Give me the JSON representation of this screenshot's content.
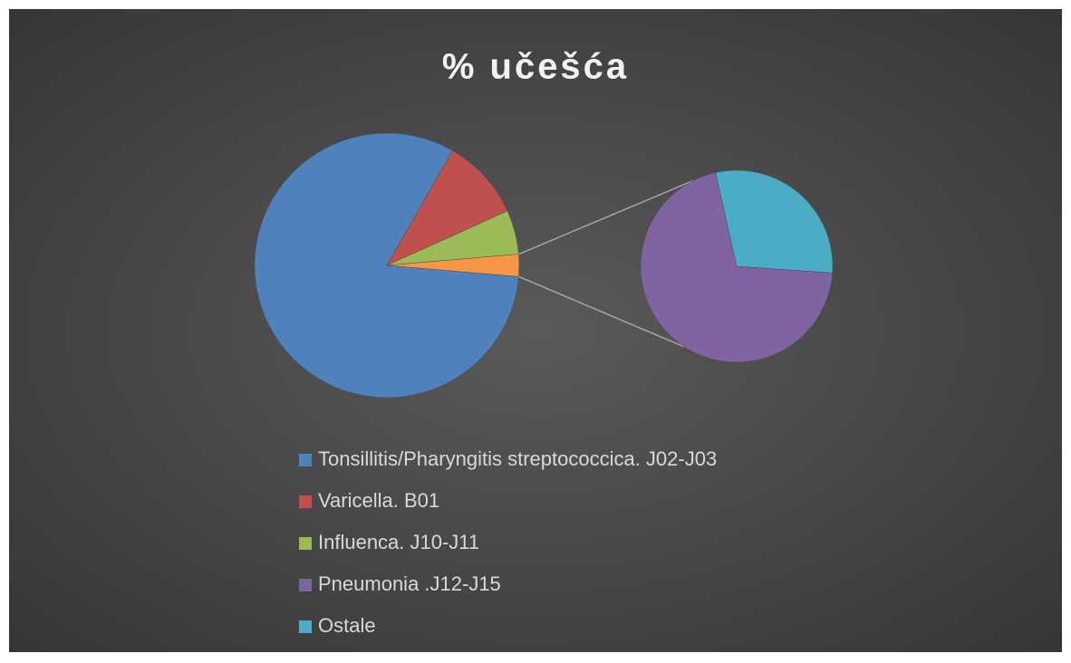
{
  "chart_data": {
    "type": "pie-of-pie",
    "title": "% učešća",
    "categories": [
      "Tonsillitis/Pharyngitis streptococcica. J02-J03",
      "Varicella. B01",
      "Influenca. J10-J11",
      "Pneumonia .J12-J15",
      "Ostale"
    ],
    "values": [
      81.9,
      10,
      5.4,
      1.9,
      0.8
    ],
    "colors": [
      "#4f81bd",
      "#c0504d",
      "#9bbb59",
      "#8064a2",
      "#4bacc6"
    ],
    "other_color": "#f79646",
    "secondary_count": 2,
    "legend": "bottom"
  }
}
